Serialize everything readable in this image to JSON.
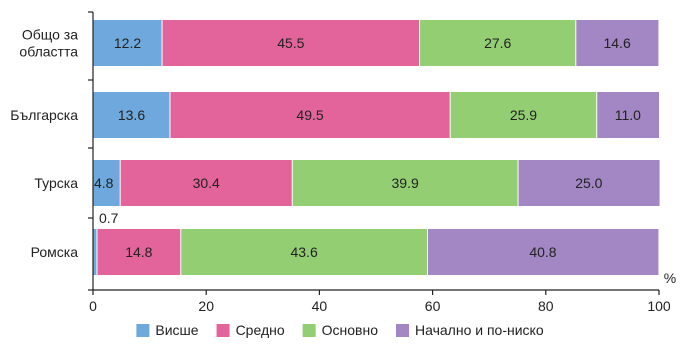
{
  "chart_data": {
    "type": "bar",
    "orientation": "horizontal",
    "stacked": true,
    "categories": [
      "Общо за областта",
      "Българска",
      "Турска",
      "Ромска"
    ],
    "category_lines": [
      [
        "Общо за",
        "областта"
      ],
      [
        "Българска"
      ],
      [
        "Турска"
      ],
      [
        "Ромска"
      ]
    ],
    "series": [
      {
        "name": "Висше",
        "color": "#6fa8dc",
        "values": [
          12.2,
          13.6,
          4.8,
          0.7
        ]
      },
      {
        "name": "Средно",
        "color": "#e2649a",
        "values": [
          45.5,
          49.5,
          30.4,
          14.8
        ]
      },
      {
        "name": "Основно",
        "color": "#93cf72",
        "values": [
          27.6,
          25.9,
          39.9,
          43.6
        ]
      },
      {
        "name": "Начално и по-ниско",
        "color": "#a287c4",
        "values": [
          14.6,
          11.0,
          25.0,
          40.8
        ]
      }
    ],
    "value_labels": [
      [
        "12.2",
        "45.5",
        "27.6",
        "14.6"
      ],
      [
        "13.6",
        "49.5",
        "25.9",
        "11.0"
      ],
      [
        "4.8",
        "30.4",
        "39.9",
        "25.0"
      ],
      [
        "0.7",
        "14.8",
        "43.6",
        "40.8"
      ]
    ],
    "xlim": [
      0,
      100
    ],
    "xticks": [
      0,
      20,
      40,
      60,
      80,
      100
    ],
    "x_unit_label": "%",
    "grid": false,
    "legend_position": "bottom"
  }
}
